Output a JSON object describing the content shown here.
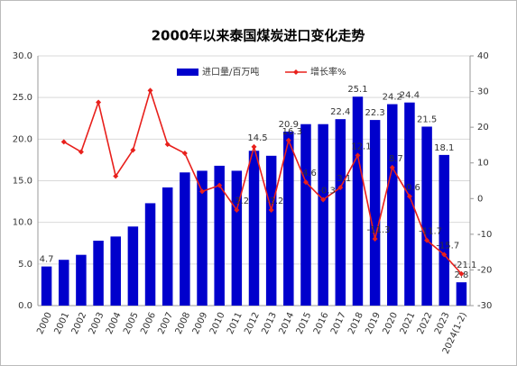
{
  "chart_data": {
    "type": "bar_line",
    "title": "2000年以来泰国煤炭进口变化走势",
    "categories": [
      "2000",
      "2001",
      "2002",
      "2003",
      "2004",
      "2005",
      "2006",
      "2007",
      "2008",
      "2009",
      "2010",
      "2011",
      "2012",
      "2013",
      "2014",
      "2015",
      "2016",
      "2017",
      "2018",
      "2019",
      "2020",
      "2021",
      "2022",
      "2023",
      "2024(1-2)"
    ],
    "series": [
      {
        "name": "进口量/百万吨",
        "color": "#0000cc",
        "kind": "bar",
        "values": [
          4.7,
          5.5,
          6.1,
          7.8,
          8.3,
          9.5,
          12.3,
          14.2,
          16.0,
          16.2,
          16.8,
          16.2,
          18.6,
          18.0,
          20.9,
          21.8,
          21.8,
          22.4,
          25.1,
          22.3,
          24.2,
          24.4,
          21.5,
          18.1,
          2.8
        ],
        "value_labels": [
          "4.7",
          null,
          null,
          null,
          null,
          null,
          null,
          null,
          null,
          null,
          null,
          null,
          null,
          null,
          "20.9",
          null,
          null,
          "22.4",
          "25.1",
          "22.3",
          "24.2",
          "24.4",
          "21.5",
          "18.1",
          "2.8"
        ]
      },
      {
        "name": "增长率%",
        "color": "#e8201c",
        "kind": "line",
        "axis": "y2",
        "values": [
          null,
          15.9,
          13.1,
          27.0,
          6.3,
          13.6,
          30.3,
          15.2,
          12.7,
          2.0,
          3.7,
          -3.2,
          14.5,
          -3.2,
          16.3,
          4.6,
          -0.3,
          3.1,
          12.1,
          -11.3,
          8.7,
          0.6,
          -11.7,
          -15.7,
          -21.1
        ],
        "value_labels": [
          null,
          null,
          null,
          null,
          null,
          null,
          null,
          null,
          null,
          null,
          null,
          "-3.2",
          "14.5",
          "-3.2",
          "16.3",
          "4.6",
          "-0.3",
          "3.1",
          "12.1",
          "-11.3",
          "8.7",
          "0.6",
          "-11.7",
          "-15.7",
          "-21.1"
        ]
      }
    ],
    "ylim": [
      0,
      30
    ],
    "yticks": [
      {
        "value": 0,
        "label": "0.0"
      },
      {
        "value": 5,
        "label": "5.0"
      },
      {
        "value": 10,
        "label": "10.0"
      },
      {
        "value": 15,
        "label": "15.0"
      },
      {
        "value": 20,
        "label": "20.0"
      },
      {
        "value": 25,
        "label": "25.0"
      },
      {
        "value": 30,
        "label": "30.0"
      }
    ],
    "y2lim": [
      -30,
      40
    ],
    "y2ticks": [
      -30,
      -20,
      -10,
      0,
      10,
      20,
      30,
      40
    ],
    "grid": true,
    "legend": "top"
  }
}
